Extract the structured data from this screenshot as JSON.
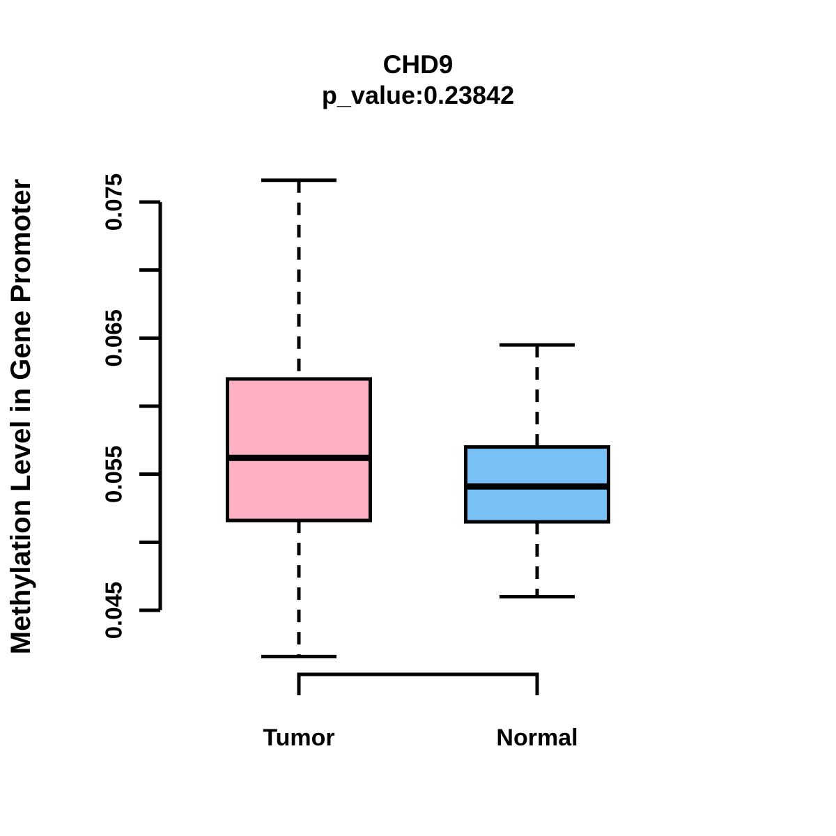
{
  "header": {
    "title": "CHD9",
    "subtitle": "p_value:0.23842"
  },
  "axes": {
    "y_label": "Methylation Level in Gene Promoter",
    "y_range": [
      0.045,
      0.075
    ],
    "y_ticks": [
      {
        "value": 0.045,
        "label": "0.045"
      },
      {
        "value": 0.05,
        "label": ""
      },
      {
        "value": 0.055,
        "label": "0.055"
      },
      {
        "value": 0.06,
        "label": ""
      },
      {
        "value": 0.065,
        "label": "0.065"
      },
      {
        "value": 0.07,
        "label": ""
      },
      {
        "value": 0.075,
        "label": "0.075"
      }
    ]
  },
  "chart_data": {
    "type": "boxplot",
    "title": "CHD9",
    "subtitle": "p_value:0.23842",
    "p_value": 0.23842,
    "ylabel": "Methylation Level in Gene Promoter",
    "xlabel": "",
    "ylim": [
      0.0416,
      0.0767
    ],
    "axis_tick_values": [
      0.045,
      0.05,
      0.055,
      0.06,
      0.065,
      0.07,
      0.075
    ],
    "grid": false,
    "legend": "none",
    "categories": [
      "Tumor",
      "Normal"
    ],
    "series": [
      {
        "name": "Tumor",
        "color": "#ffb0c3",
        "whisker_low": 0.0416,
        "q1": 0.0516,
        "median": 0.0562,
        "q3": 0.062,
        "whisker_high": 0.0766
      },
      {
        "name": "Normal",
        "color": "#77c1f7",
        "whisker_low": 0.046,
        "q1": 0.0515,
        "median": 0.0541,
        "q3": 0.057,
        "whisker_high": 0.0645
      }
    ],
    "border_color": "#000000"
  }
}
